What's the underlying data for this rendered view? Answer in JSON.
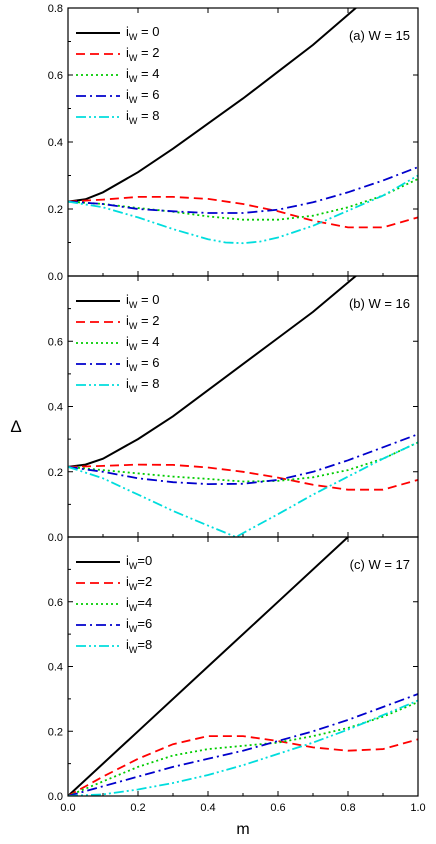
{
  "figure": {
    "xlabel": "m",
    "ylabel": "Δ"
  },
  "chart_data": [
    {
      "type": "line",
      "title": "(a) W = 15",
      "xlim": [
        0.0,
        1.0
      ],
      "ylim": [
        0.0,
        0.8
      ],
      "xticks": [
        0.0,
        0.2,
        0.4,
        0.6,
        0.8,
        1.0
      ],
      "yticks": [
        0.0,
        0.2,
        0.4,
        0.6,
        0.8
      ],
      "xtick_labels": [],
      "ytick_labels": [
        "0.0",
        "0.2",
        "0.4",
        "0.6",
        "0.8"
      ],
      "legend_position": "top-left",
      "series": [
        {
          "name": "iW = 0",
          "label_main": "i",
          "label_sub": "W",
          "label_rest": " = 0",
          "color": "#000000",
          "dash": "solid",
          "x": [
            0.0,
            0.05,
            0.1,
            0.2,
            0.3,
            0.4,
            0.5,
            0.6,
            0.7,
            0.8,
            0.9,
            1.0
          ],
          "y": [
            0.222,
            0.229,
            0.25,
            0.31,
            0.38,
            0.455,
            0.53,
            0.61,
            0.69,
            0.78,
            0.87,
            0.96
          ]
        },
        {
          "name": "iW = 2",
          "label_main": "i",
          "label_sub": "W",
          "label_rest": " = 2",
          "color": "#ff0000",
          "dash": "dash",
          "x": [
            0.0,
            0.1,
            0.2,
            0.3,
            0.4,
            0.5,
            0.6,
            0.7,
            0.8,
            0.9,
            1.0
          ],
          "y": [
            0.222,
            0.228,
            0.236,
            0.236,
            0.23,
            0.215,
            0.193,
            0.165,
            0.145,
            0.145,
            0.175
          ]
        },
        {
          "name": "iW = 4",
          "label_main": "i",
          "label_sub": "W",
          "label_rest": " = 4",
          "color": "#00cc00",
          "dash": "dot",
          "x": [
            0.0,
            0.1,
            0.2,
            0.3,
            0.4,
            0.5,
            0.6,
            0.7,
            0.8,
            0.9,
            1.0
          ],
          "y": [
            0.222,
            0.215,
            0.203,
            0.192,
            0.178,
            0.168,
            0.168,
            0.18,
            0.205,
            0.24,
            0.29
          ]
        },
        {
          "name": "iW = 6",
          "label_main": "i",
          "label_sub": "W",
          "label_rest": " = 6",
          "color": "#0000cc",
          "dash": "dashdot",
          "x": [
            0.0,
            0.1,
            0.2,
            0.3,
            0.4,
            0.5,
            0.6,
            0.7,
            0.8,
            0.9,
            1.0
          ],
          "y": [
            0.222,
            0.215,
            0.2,
            0.193,
            0.188,
            0.188,
            0.198,
            0.22,
            0.25,
            0.285,
            0.325
          ]
        },
        {
          "name": "iW = 8",
          "label_main": "i",
          "label_sub": "W",
          "label_rest": " = 8",
          "color": "#00dddd",
          "dash": "dashdotdot",
          "x": [
            0.0,
            0.1,
            0.2,
            0.3,
            0.4,
            0.45,
            0.5,
            0.55,
            0.6,
            0.7,
            0.8,
            0.9,
            1.0
          ],
          "y": [
            0.222,
            0.205,
            0.175,
            0.14,
            0.11,
            0.1,
            0.098,
            0.103,
            0.115,
            0.15,
            0.195,
            0.24,
            0.3
          ]
        }
      ]
    },
    {
      "type": "line",
      "title": "(b) W = 16",
      "xlim": [
        0.0,
        1.0
      ],
      "ylim": [
        0.0,
        0.8
      ],
      "xticks": [
        0.0,
        0.2,
        0.4,
        0.6,
        0.8,
        1.0
      ],
      "yticks": [
        0.0,
        0.2,
        0.4,
        0.6
      ],
      "xtick_labels": [],
      "ytick_labels": [
        "0.0",
        "0.2",
        "0.4",
        "0.6"
      ],
      "legend_position": "top-left",
      "series": [
        {
          "name": "iW = 0",
          "label_main": "i",
          "label_sub": "W",
          "label_rest": " = 0",
          "color": "#000000",
          "dash": "solid",
          "x": [
            0.0,
            0.05,
            0.1,
            0.2,
            0.3,
            0.4,
            0.5,
            0.6,
            0.7,
            0.8,
            0.9,
            1.0
          ],
          "y": [
            0.215,
            0.222,
            0.24,
            0.3,
            0.37,
            0.45,
            0.53,
            0.61,
            0.69,
            0.78,
            0.87,
            0.96
          ]
        },
        {
          "name": "iW = 2",
          "label_main": "i",
          "label_sub": "W",
          "label_rest": " = 2",
          "color": "#ff0000",
          "dash": "dash",
          "x": [
            0.0,
            0.1,
            0.2,
            0.3,
            0.4,
            0.5,
            0.6,
            0.7,
            0.8,
            0.9,
            1.0
          ],
          "y": [
            0.215,
            0.218,
            0.222,
            0.221,
            0.213,
            0.2,
            0.182,
            0.16,
            0.145,
            0.145,
            0.175
          ]
        },
        {
          "name": "iW = 4",
          "label_main": "i",
          "label_sub": "W",
          "label_rest": " = 4",
          "color": "#00cc00",
          "dash": "dot",
          "x": [
            0.0,
            0.1,
            0.2,
            0.3,
            0.4,
            0.5,
            0.6,
            0.7,
            0.8,
            0.9,
            1.0
          ],
          "y": [
            0.215,
            0.205,
            0.195,
            0.185,
            0.178,
            0.17,
            0.172,
            0.183,
            0.205,
            0.24,
            0.29
          ]
        },
        {
          "name": "iW = 6",
          "label_main": "i",
          "label_sub": "W",
          "label_rest": " = 6",
          "color": "#0000cc",
          "dash": "dashdot",
          "x": [
            0.0,
            0.1,
            0.2,
            0.3,
            0.4,
            0.5,
            0.6,
            0.7,
            0.8,
            0.9,
            1.0
          ],
          "y": [
            0.215,
            0.2,
            0.18,
            0.168,
            0.162,
            0.163,
            0.175,
            0.2,
            0.235,
            0.275,
            0.315
          ]
        },
        {
          "name": "iW = 8",
          "label_main": "i",
          "label_sub": "W",
          "label_rest": " = 8",
          "color": "#00dddd",
          "dash": "dashdotdot",
          "x": [
            0.0,
            0.1,
            0.2,
            0.3,
            0.4,
            0.48,
            0.5,
            0.6,
            0.7,
            0.8,
            0.9,
            1.0
          ],
          "y": [
            0.215,
            0.18,
            0.13,
            0.08,
            0.035,
            0.0,
            0.012,
            0.07,
            0.13,
            0.185,
            0.24,
            0.29
          ]
        }
      ]
    },
    {
      "type": "line",
      "title": "(c) W = 17",
      "xlim": [
        0.0,
        1.0
      ],
      "ylim": [
        0.0,
        0.8
      ],
      "xticks": [
        0.0,
        0.2,
        0.4,
        0.6,
        0.8,
        1.0
      ],
      "yticks": [
        0.0,
        0.2,
        0.4,
        0.6
      ],
      "xtick_labels": [
        "0.0",
        "0.2",
        "0.4",
        "0.6",
        "0.8",
        "1.0"
      ],
      "ytick_labels": [
        "0.0",
        "0.2",
        "0.4",
        "0.6"
      ],
      "legend_position": "top-left",
      "series": [
        {
          "name": "iW=0",
          "label_main": "i",
          "label_sub": "W",
          "label_rest": "=0",
          "color": "#000000",
          "dash": "solid",
          "x": [
            0.0,
            0.2,
            0.4,
            0.6,
            0.8,
            1.0
          ],
          "y": [
            0.0,
            0.2,
            0.4,
            0.6,
            0.8,
            1.0
          ]
        },
        {
          "name": "iW=2",
          "label_main": "i",
          "label_sub": "W",
          "label_rest": "=2",
          "color": "#ff0000",
          "dash": "dash",
          "x": [
            0.0,
            0.1,
            0.2,
            0.3,
            0.4,
            0.5,
            0.6,
            0.7,
            0.8,
            0.9,
            1.0
          ],
          "y": [
            0.0,
            0.06,
            0.115,
            0.16,
            0.185,
            0.185,
            0.17,
            0.15,
            0.14,
            0.145,
            0.175
          ]
        },
        {
          "name": "iW=4",
          "label_main": "i",
          "label_sub": "W",
          "label_rest": "=4",
          "color": "#00cc00",
          "dash": "dot",
          "x": [
            0.0,
            0.1,
            0.2,
            0.3,
            0.4,
            0.5,
            0.6,
            0.7,
            0.8,
            0.9,
            1.0
          ],
          "y": [
            0.0,
            0.045,
            0.09,
            0.125,
            0.145,
            0.155,
            0.165,
            0.185,
            0.21,
            0.245,
            0.29
          ]
        },
        {
          "name": "iW=6",
          "label_main": "i",
          "label_sub": "W",
          "label_rest": "=6",
          "color": "#0000cc",
          "dash": "dashdot",
          "x": [
            0.0,
            0.1,
            0.2,
            0.3,
            0.4,
            0.5,
            0.6,
            0.7,
            0.8,
            0.9,
            1.0
          ],
          "y": [
            0.0,
            0.03,
            0.06,
            0.09,
            0.115,
            0.14,
            0.17,
            0.2,
            0.235,
            0.275,
            0.315
          ]
        },
        {
          "name": "iW=8",
          "label_main": "i",
          "label_sub": "W",
          "label_rest": "=8",
          "color": "#00dddd",
          "dash": "dashdotdot",
          "x": [
            0.0,
            0.1,
            0.2,
            0.3,
            0.4,
            0.5,
            0.6,
            0.7,
            0.8,
            0.9,
            1.0
          ],
          "y": [
            0.0,
            0.005,
            0.02,
            0.04,
            0.065,
            0.095,
            0.13,
            0.165,
            0.205,
            0.25,
            0.295
          ]
        }
      ]
    }
  ]
}
